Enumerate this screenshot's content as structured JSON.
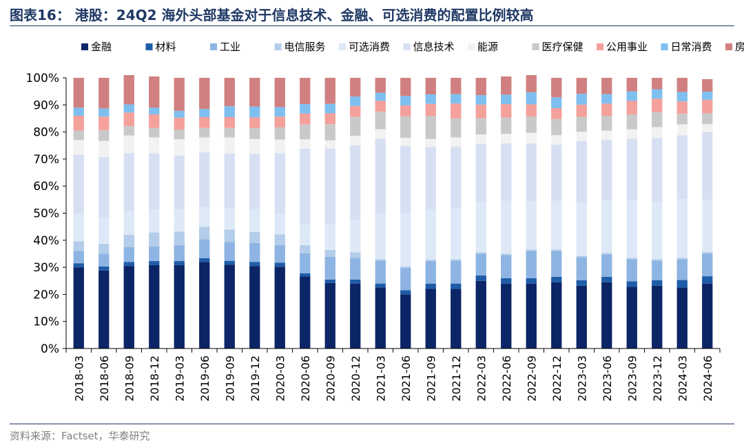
{
  "title": "图表16：  港股：24Q2 海外头部基金对于信息技术、金融、可选消费的配置比例较高",
  "source": "资料来源：Factset，华泰研究",
  "chart_data": {
    "type": "stacked-bar",
    "stacking": "percent",
    "ylim": [
      0,
      100
    ],
    "yticks": [
      "0%",
      "10%",
      "20%",
      "30%",
      "40%",
      "50%",
      "60%",
      "70%",
      "80%",
      "90%",
      "100%"
    ],
    "legend_position": "top",
    "grid": false,
    "categories": [
      "2018-03",
      "2018-06",
      "2018-09",
      "2018-12",
      "2019-03",
      "2019-06",
      "2019-09",
      "2019-12",
      "2020-03",
      "2020-06",
      "2020-09",
      "2020-12",
      "2021-03",
      "2021-06",
      "2021-09",
      "2021-12",
      "2022-03",
      "2022-06",
      "2022-09",
      "2022-12",
      "2023-03",
      "2023-06",
      "2023-09",
      "2023-12",
      "2024-03",
      "2024-06"
    ],
    "series": [
      {
        "name": "金融",
        "color": "#0b2566",
        "values": [
          30,
          28.8,
          30.5,
          30.8,
          30.8,
          32,
          31,
          30.5,
          30.2,
          26.6,
          24.2,
          24,
          22.5,
          20,
          22,
          22,
          25,
          24,
          24,
          24.5,
          23.2,
          24.5,
          22.8,
          23.2,
          22.5,
          24
        ]
      },
      {
        "name": "材料",
        "color": "#1f5ca8",
        "values": [
          1.5,
          1.5,
          1.5,
          1.5,
          1.5,
          1.4,
          1.4,
          1.5,
          1.5,
          1.2,
          1.3,
          1.5,
          1.5,
          1.5,
          2,
          2,
          2,
          2,
          2,
          2,
          2,
          2,
          2,
          2,
          2.8,
          2.7
        ]
      },
      {
        "name": "工业",
        "color": "#8db4e2",
        "values": [
          4.5,
          4.7,
          5.5,
          5.4,
          5.9,
          7,
          7,
          7,
          6.5,
          7.4,
          8.4,
          8,
          8.5,
          8.3,
          8.3,
          8.5,
          8,
          8.5,
          10,
          9.5,
          8.5,
          8.3,
          8.2,
          7.3,
          7.7,
          8.4
        ]
      },
      {
        "name": "电信服务",
        "color": "#b4cdea",
        "values": [
          3.6,
          3.7,
          4.5,
          5.2,
          5,
          4.5,
          4.5,
          4,
          4,
          3,
          2.5,
          2,
          0.5,
          0.5,
          0.5,
          0.5,
          0.5,
          0.5,
          0.5,
          0.5,
          0.5,
          0.5,
          0.5,
          0.5,
          0.5,
          0.5
        ]
      },
      {
        "name": "可选消费",
        "color": "#dde9f6",
        "values": [
          10.4,
          9.7,
          8.9,
          8.5,
          8,
          7.5,
          8,
          8.5,
          7.8,
          7.7,
          9.5,
          12,
          17,
          19.8,
          18.5,
          18.7,
          18.5,
          19.6,
          17.8,
          18,
          19.8,
          19.5,
          21.2,
          21,
          21.8,
          19.4
        ]
      },
      {
        "name": "信息技术",
        "color": "#d7dff3",
        "values": [
          21.5,
          22.3,
          21.3,
          20.6,
          20.1,
          20.1,
          20.1,
          20.4,
          22.2,
          27.9,
          28,
          27.6,
          27.5,
          24.7,
          23.1,
          22.8,
          21.6,
          21.2,
          21.4,
          20.8,
          22.6,
          22.2,
          22.8,
          23.8,
          23.5,
          24.9
        ]
      },
      {
        "name": "能源",
        "color": "#f2f2f2",
        "values": [
          5.5,
          6,
          6.5,
          6,
          6,
          5.5,
          6,
          5.5,
          5,
          3.5,
          3,
          3.5,
          3.5,
          3,
          3,
          3.5,
          3.5,
          3.5,
          4,
          3.5,
          3.5,
          3.5,
          3.5,
          4,
          4,
          3
        ]
      },
      {
        "name": "医疗保健",
        "color": "#c9c9c9",
        "values": [
          3.5,
          4,
          3.5,
          3.5,
          3.5,
          3.5,
          3.5,
          4,
          4.5,
          5.5,
          6,
          7,
          6.5,
          8,
          8.5,
          7,
          6,
          6,
          6,
          6,
          5.5,
          5.5,
          5.5,
          5.5,
          4,
          4
        ]
      },
      {
        "name": "公用事业",
        "color": "#f4a09b",
        "values": [
          5.5,
          5,
          5,
          5,
          4.5,
          4,
          4,
          4,
          4,
          4,
          4,
          4,
          4,
          4,
          4.5,
          5.5,
          5,
          5,
          4.5,
          4,
          4.5,
          4.5,
          5,
          5,
          4.5,
          5
        ]
      },
      {
        "name": "日常消费",
        "color": "#7fbff0",
        "values": [
          3,
          3,
          3,
          2.5,
          2.5,
          3,
          4,
          4,
          3.5,
          3.5,
          3.5,
          3.5,
          3,
          3.5,
          3.5,
          3.5,
          3.5,
          3.5,
          4.5,
          4,
          4,
          3.5,
          3.5,
          3.5,
          3.5,
          3
        ]
      },
      {
        "name": "房地产",
        "color": "#d08080",
        "values": [
          11,
          11.3,
          10.8,
          11.5,
          12.2,
          11.5,
          10.5,
          10.6,
          10.8,
          9.7,
          9.6,
          6.9,
          5.5,
          6.7,
          6.1,
          6,
          6.4,
          6.7,
          6.3,
          7.2,
          5.9,
          6,
          5,
          4.2,
          5.2,
          4.6
        ]
      }
    ]
  }
}
